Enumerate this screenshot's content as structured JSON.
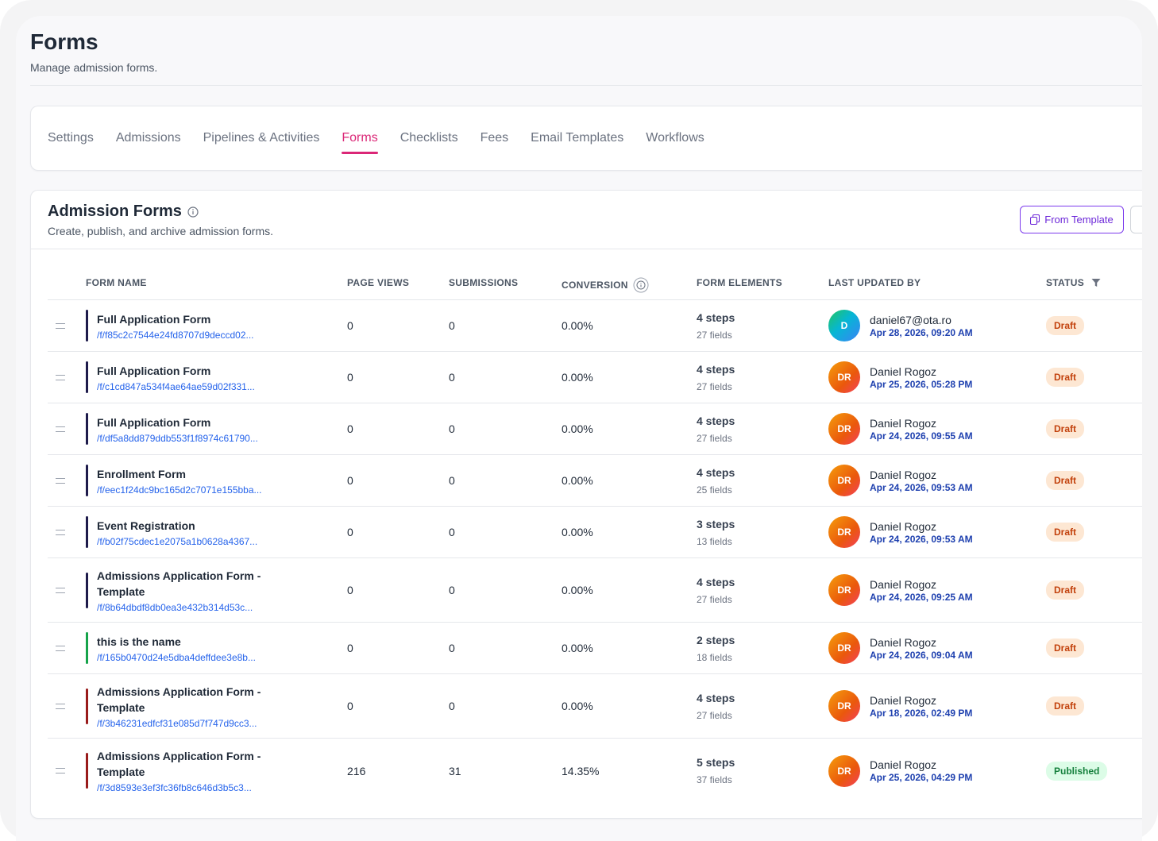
{
  "page": {
    "title": "Forms",
    "subtitle": "Manage admission forms."
  },
  "tabs": [
    {
      "label": "Settings",
      "active": false
    },
    {
      "label": "Admissions",
      "active": false
    },
    {
      "label": "Pipelines & Activities",
      "active": false
    },
    {
      "label": "Forms",
      "active": true
    },
    {
      "label": "Checklists",
      "active": false
    },
    {
      "label": "Fees",
      "active": false
    },
    {
      "label": "Email Templates",
      "active": false
    },
    {
      "label": "Workflows",
      "active": false
    }
  ],
  "card": {
    "title": "Admission Forms",
    "subtitle": "Create, publish, and archive admission forms.",
    "from_template_label": "From Template"
  },
  "columns": {
    "form_name": "FORM NAME",
    "page_views": "PAGE VIEWS",
    "submissions": "SUBMISSIONS",
    "conversion": "CONVERSION",
    "form_elements": "FORM ELEMENTS",
    "last_updated_by": "LAST UPDATED BY",
    "status": "STATUS"
  },
  "colors": {
    "accent": "#db2777",
    "bar_navy": "#1e1b4b",
    "bar_green": "#16a34a",
    "bar_red": "#991b1b",
    "link": "#2563eb"
  },
  "rows": [
    {
      "name": "Full Application Form",
      "slug": "/f/f85c2c7544e24fd8707d9deccd02...",
      "page_views": "0",
      "submissions": "0",
      "conversion": "0.00%",
      "steps": "4 steps",
      "fields": "27 fields",
      "avatar": "D",
      "avatar_style": "d",
      "user": "daniel67@ota.ro",
      "date": "Apr 28, 2026, 09:20 AM",
      "status": "Draft",
      "bar": "navy"
    },
    {
      "name": "Full Application Form",
      "slug": "/f/c1cd847a534f4ae64ae59d02f331...",
      "page_views": "0",
      "submissions": "0",
      "conversion": "0.00%",
      "steps": "4 steps",
      "fields": "27 fields",
      "avatar": "DR",
      "avatar_style": "dr",
      "user": "Daniel Rogoz",
      "date": "Apr 25, 2026, 05:28 PM",
      "status": "Draft",
      "bar": "navy"
    },
    {
      "name": "Full Application Form",
      "slug": "/f/df5a8dd879ddb553f1f8974c61790...",
      "page_views": "0",
      "submissions": "0",
      "conversion": "0.00%",
      "steps": "4 steps",
      "fields": "27 fields",
      "avatar": "DR",
      "avatar_style": "dr",
      "user": "Daniel Rogoz",
      "date": "Apr 24, 2026, 09:55 AM",
      "status": "Draft",
      "bar": "navy"
    },
    {
      "name": "Enrollment Form",
      "slug": "/f/eec1f24dc9bc165d2c7071e155bba...",
      "page_views": "0",
      "submissions": "0",
      "conversion": "0.00%",
      "steps": "4 steps",
      "fields": "25 fields",
      "avatar": "DR",
      "avatar_style": "dr",
      "user": "Daniel Rogoz",
      "date": "Apr 24, 2026, 09:53 AM",
      "status": "Draft",
      "bar": "navy"
    },
    {
      "name": "Event Registration",
      "slug": "/f/b02f75cdec1e2075a1b0628a4367...",
      "page_views": "0",
      "submissions": "0",
      "conversion": "0.00%",
      "steps": "3 steps",
      "fields": "13 fields",
      "avatar": "DR",
      "avatar_style": "dr",
      "user": "Daniel Rogoz",
      "date": "Apr 24, 2026, 09:53 AM",
      "status": "Draft",
      "bar": "navy"
    },
    {
      "name": "Admissions Application Form - Template",
      "slug": "/f/8b64dbdf8db0ea3e432b314d53c...",
      "page_views": "0",
      "submissions": "0",
      "conversion": "0.00%",
      "steps": "4 steps",
      "fields": "27 fields",
      "avatar": "DR",
      "avatar_style": "dr",
      "user": "Daniel Rogoz",
      "date": "Apr 24, 2026, 09:25 AM",
      "status": "Draft",
      "bar": "navy"
    },
    {
      "name": "this is the name",
      "slug": "/f/165b0470d24e5dba4deffdee3e8b...",
      "page_views": "0",
      "submissions": "0",
      "conversion": "0.00%",
      "steps": "2 steps",
      "fields": "18 fields",
      "avatar": "DR",
      "avatar_style": "dr",
      "user": "Daniel Rogoz",
      "date": "Apr 24, 2026, 09:04 AM",
      "status": "Draft",
      "bar": "green"
    },
    {
      "name": "Admissions Application Form - Template",
      "slug": "/f/3b46231edfcf31e085d7f747d9cc3...",
      "page_views": "0",
      "submissions": "0",
      "conversion": "0.00%",
      "steps": "4 steps",
      "fields": "27 fields",
      "avatar": "DR",
      "avatar_style": "dr",
      "user": "Daniel Rogoz",
      "date": "Apr 18, 2026, 02:49 PM",
      "status": "Draft",
      "bar": "red"
    },
    {
      "name": "Admissions Application Form - Template",
      "slug": "/f/3d8593e3ef3fc36fb8c646d3b5c3...",
      "page_views": "216",
      "submissions": "31",
      "conversion": "14.35%",
      "steps": "5 steps",
      "fields": "37 fields",
      "avatar": "DR",
      "avatar_style": "dr",
      "user": "Daniel Rogoz",
      "date": "Apr 25, 2026, 04:29 PM",
      "status": "Published",
      "bar": "red"
    }
  ]
}
